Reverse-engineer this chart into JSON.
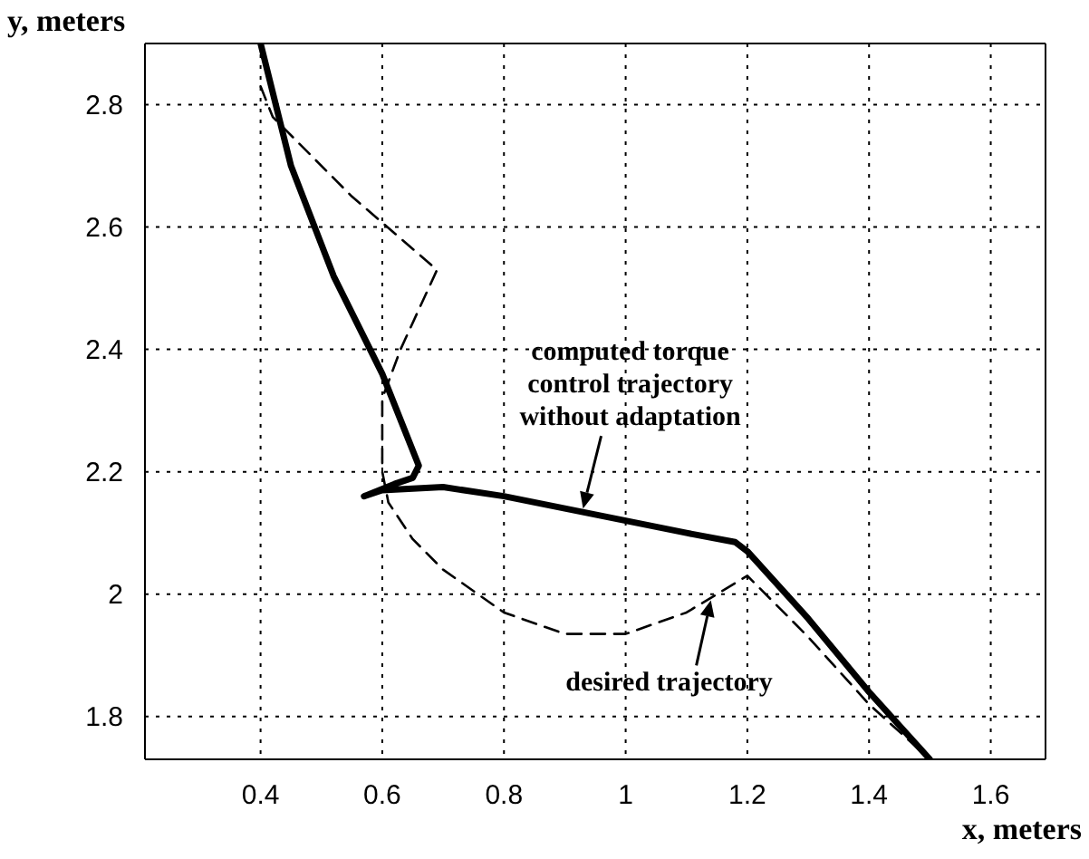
{
  "chart_data": {
    "type": "line",
    "xlabel": "x, meters",
    "ylabel": "y, meters",
    "xlim": [
      0.21,
      1.69
    ],
    "ylim": [
      1.73,
      2.9
    ],
    "xticks": [
      0.4,
      0.6,
      0.8,
      1,
      1.2,
      1.4,
      1.6
    ],
    "yticks": [
      1.8,
      2,
      2.2,
      2.4,
      2.6,
      2.8
    ],
    "grid": true,
    "marker": "none",
    "series": [
      {
        "color": "#000000",
        "line_style": "solid",
        "x": [
          0.4,
          0.45,
          0.52,
          0.6,
          0.64,
          0.66,
          0.65,
          0.62,
          0.57,
          0.6,
          0.7,
          0.8,
          0.9,
          1.0,
          1.1,
          1.18,
          1.2,
          1.3,
          1.4,
          1.5
        ],
        "values": [
          2.9,
          2.7,
          2.52,
          2.36,
          2.26,
          2.21,
          2.19,
          2.18,
          2.16,
          2.17,
          2.175,
          2.16,
          2.14,
          2.12,
          2.1,
          2.085,
          2.07,
          1.96,
          1.84,
          1.73
        ]
      },
      {
        "color": "#000000",
        "line_style": "dashed",
        "x": [
          0.4,
          0.42,
          0.55,
          0.69,
          0.63,
          0.6,
          0.6,
          0.61,
          0.65,
          0.7,
          0.8,
          0.9,
          1.0,
          1.1,
          1.15,
          1.2,
          1.3,
          1.4,
          1.5
        ],
        "values": [
          2.83,
          2.78,
          2.65,
          2.53,
          2.4,
          2.32,
          2.2,
          2.15,
          2.09,
          2.04,
          1.97,
          1.935,
          1.935,
          1.97,
          2.0,
          2.03,
          1.93,
          1.82,
          1.73
        ]
      }
    ],
    "annotations": [
      {
        "text": "computed torque control trajectory without adaptation",
        "x": 0.93,
        "y": 2.14
      },
      {
        "text": "desired trajectory",
        "x": 1.14,
        "y": 1.99
      }
    ]
  }
}
